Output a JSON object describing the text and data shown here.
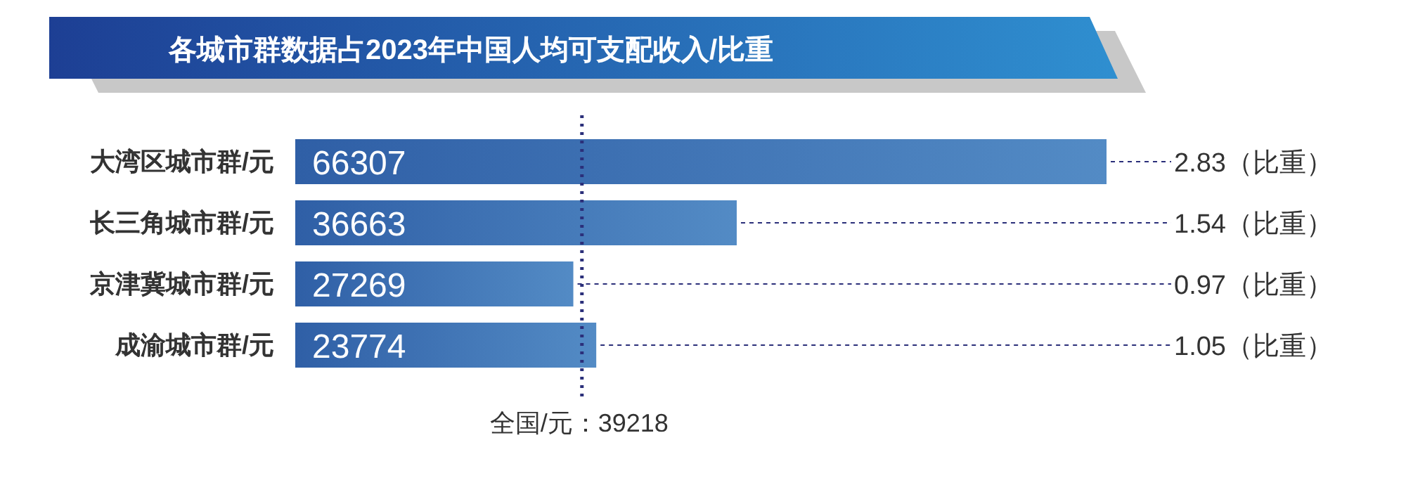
{
  "chart_data": {
    "type": "bar",
    "orientation": "horizontal",
    "title": "各城市群数据占2023年中国人均可支配收入/比重",
    "categories": [
      "大湾区城市群/元",
      "长三角城市群/元",
      "京津冀城市群/元",
      "成渝城市群/元"
    ],
    "values": [
      2.83,
      1.54,
      0.97,
      1.05
    ],
    "value_labels": [
      "2.83（比重）",
      "1.54（比重）",
      "0.97（比重）",
      "1.05（比重）"
    ],
    "color": "#2f5fa6",
    "annotations": [
      {
        "text": "66307",
        "y": "大湾区城市群/元"
      },
      {
        "text": "36663",
        "y": "长三角城市群/元"
      },
      {
        "text": "27269",
        "y": "京津冀城市群/元"
      },
      {
        "text": "23774",
        "y": "成渝城市群/元"
      }
    ],
    "ref_lines": [
      {
        "axis": "x",
        "value": 1,
        "label": "全国/元：39218",
        "color": "#2b2f7a",
        "line_style": "dotted"
      }
    ]
  }
}
